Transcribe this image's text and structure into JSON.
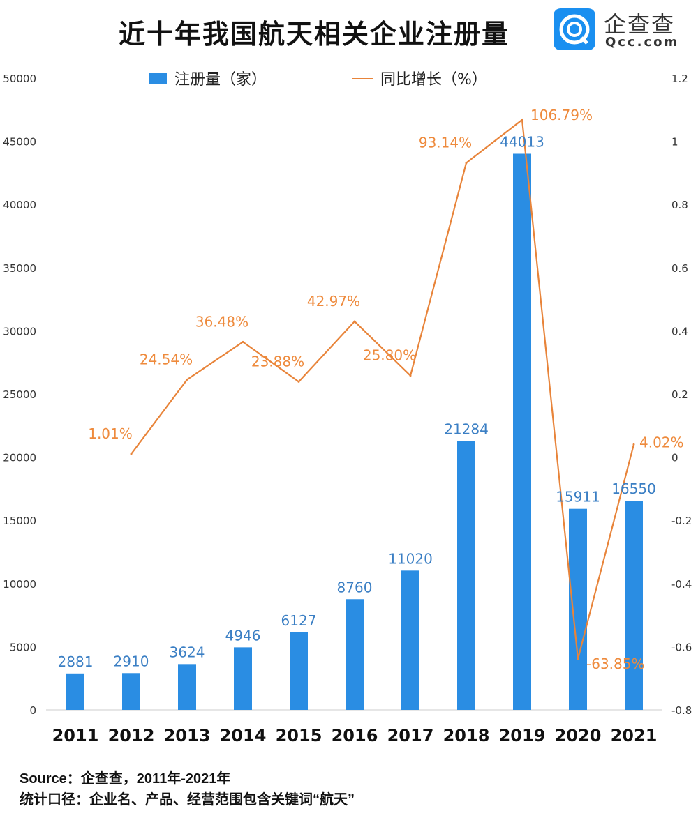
{
  "title": "近十年我国航天相关企业注册量",
  "logo": {
    "name": "企查查",
    "url": "Qcc.com"
  },
  "footer": {
    "source": "Source：企查查，2011年-2021年",
    "note": "统计口径：企业名、产品、经营范围包含关键词“航天”"
  },
  "colors": {
    "bar": "#2A8DE3",
    "bar_label": "#3B7FC4",
    "line": "#E8843A",
    "line_label": "#EE8A3C"
  },
  "chart_data": {
    "type": "bar+line",
    "title": "近十年我国航天相关企业注册量",
    "categories": [
      "2011",
      "2012",
      "2013",
      "2014",
      "2015",
      "2016",
      "2017",
      "2018",
      "2019",
      "2020",
      "2021"
    ],
    "series": [
      {
        "name": "注册量（家）",
        "type": "bar",
        "axis": "left",
        "values": [
          2881,
          2910,
          3624,
          4946,
          6127,
          8760,
          11020,
          21284,
          44013,
          15911,
          16550
        ],
        "labels": [
          "2881",
          "2910",
          "3624",
          "4946",
          "6127",
          "8760",
          "11020",
          "21284",
          "44013",
          "15911",
          "16550"
        ]
      },
      {
        "name": "同比增长（%）",
        "type": "line",
        "axis": "right",
        "values": [
          null,
          0.0101,
          0.2454,
          0.3648,
          0.2388,
          0.4297,
          0.258,
          0.9314,
          1.0679,
          -0.6385,
          0.0402
        ],
        "labels": [
          null,
          "1.01%",
          "24.54%",
          "36.48%",
          "23.88%",
          "42.97%",
          "25.80%",
          "93.14%",
          "106.79%",
          "-63.85%",
          "4.02%"
        ]
      }
    ],
    "y_left": {
      "range": [
        0,
        50000
      ],
      "ticks": [
        "0",
        "5000",
        "10000",
        "15000",
        "20000",
        "25000",
        "30000",
        "35000",
        "40000",
        "45000",
        "50000"
      ]
    },
    "y_right": {
      "range": [
        -0.8,
        1.2
      ],
      "ticks": [
        "-0.8",
        "-0.6",
        "-0.4",
        "-0.2",
        "0",
        "0.2",
        "0.4",
        "0.6",
        "0.8",
        "1",
        "1.2"
      ]
    },
    "legend": "top",
    "grid": false
  }
}
